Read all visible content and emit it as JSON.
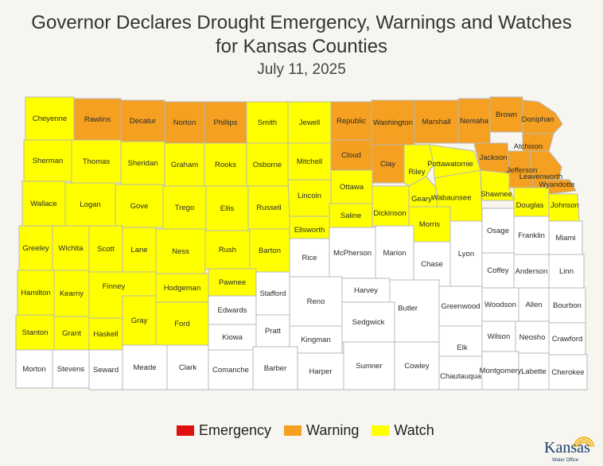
{
  "title_line1": "Governor Declares Drought Emergency, Warnings and Watches",
  "title_line2": "for Kansas Counties",
  "date": "July 11, 2025",
  "colors": {
    "Emergency": "#e01010",
    "Warning": "#f5a020",
    "Watch": "#ffff00",
    "None": "#ffffff",
    "border": "#b8b8b8"
  },
  "legend": [
    {
      "label": "Emergency",
      "status": "Emergency"
    },
    {
      "label": "Warning",
      "status": "Warning"
    },
    {
      "label": "Watch",
      "status": "Watch"
    }
  ],
  "logo": {
    "name": "Kansas",
    "sub": "Water Office"
  },
  "counties": [
    {
      "name": "Cheyenne",
      "status": "Watch"
    },
    {
      "name": "Rawlins",
      "status": "Warning"
    },
    {
      "name": "Decatur",
      "status": "Warning"
    },
    {
      "name": "Norton",
      "status": "Warning"
    },
    {
      "name": "Phillips",
      "status": "Warning"
    },
    {
      "name": "Smith",
      "status": "Watch"
    },
    {
      "name": "Jewell",
      "status": "Watch"
    },
    {
      "name": "Republic",
      "status": "Warning"
    },
    {
      "name": "Washington",
      "status": "Warning"
    },
    {
      "name": "Marshall",
      "status": "Warning"
    },
    {
      "name": "Nemaha",
      "status": "Warning"
    },
    {
      "name": "Brown",
      "status": "Warning"
    },
    {
      "name": "Doniphan",
      "status": "Warning"
    },
    {
      "name": "Sherman",
      "status": "Watch"
    },
    {
      "name": "Thomas",
      "status": "Watch"
    },
    {
      "name": "Sheridan",
      "status": "Watch"
    },
    {
      "name": "Graham",
      "status": "Watch"
    },
    {
      "name": "Rooks",
      "status": "Watch"
    },
    {
      "name": "Osborne",
      "status": "Watch"
    },
    {
      "name": "Mitchell",
      "status": "Watch"
    },
    {
      "name": "Cloud",
      "status": "Warning"
    },
    {
      "name": "Clay",
      "status": "Warning"
    },
    {
      "name": "Riley",
      "status": "Watch"
    },
    {
      "name": "Pottawatomie",
      "status": "Watch"
    },
    {
      "name": "Jackson",
      "status": "Warning"
    },
    {
      "name": "Atchison",
      "status": "Warning"
    },
    {
      "name": "Jefferson",
      "status": "Warning"
    },
    {
      "name": "Leavenworth",
      "status": "Warning"
    },
    {
      "name": "Wyandotte",
      "status": "Warning"
    },
    {
      "name": "Wallace",
      "status": "Watch"
    },
    {
      "name": "Logan",
      "status": "Watch"
    },
    {
      "name": "Gove",
      "status": "Watch"
    },
    {
      "name": "Trego",
      "status": "Watch"
    },
    {
      "name": "Ellis",
      "status": "Watch"
    },
    {
      "name": "Russell",
      "status": "Watch"
    },
    {
      "name": "Lincoln",
      "status": "Watch"
    },
    {
      "name": "Ottawa",
      "status": "Watch"
    },
    {
      "name": "Geary",
      "status": "Watch"
    },
    {
      "name": "Wabaunsee",
      "status": "Watch"
    },
    {
      "name": "Shawnee",
      "status": "Watch"
    },
    {
      "name": "Douglas",
      "status": "Watch"
    },
    {
      "name": "Johnson",
      "status": "Watch"
    },
    {
      "name": "Ellsworth",
      "status": "Watch"
    },
    {
      "name": "Saline",
      "status": "Watch"
    },
    {
      "name": "Dickinson",
      "status": "Watch"
    },
    {
      "name": "Morris",
      "status": "Watch"
    },
    {
      "name": "Greeley",
      "status": "Watch"
    },
    {
      "name": "Wichita",
      "status": "Watch"
    },
    {
      "name": "Scott",
      "status": "Watch"
    },
    {
      "name": "Lane",
      "status": "Watch"
    },
    {
      "name": "Ness",
      "status": "Watch"
    },
    {
      "name": "Rush",
      "status": "Watch"
    },
    {
      "name": "Barton",
      "status": "Watch"
    },
    {
      "name": "Rice",
      "status": "None"
    },
    {
      "name": "McPherson",
      "status": "None"
    },
    {
      "name": "Marion",
      "status": "None"
    },
    {
      "name": "Chase",
      "status": "None"
    },
    {
      "name": "Lyon",
      "status": "None"
    },
    {
      "name": "Osage",
      "status": "None"
    },
    {
      "name": "Franklin",
      "status": "None"
    },
    {
      "name": "Miami",
      "status": "None"
    },
    {
      "name": "Coffey",
      "status": "None"
    },
    {
      "name": "Anderson",
      "status": "None"
    },
    {
      "name": "Linn",
      "status": "None"
    },
    {
      "name": "Hamilton",
      "status": "Watch"
    },
    {
      "name": "Kearny",
      "status": "Watch"
    },
    {
      "name": "Finney",
      "status": "Watch"
    },
    {
      "name": "Hodgeman",
      "status": "Watch"
    },
    {
      "name": "Pawnee",
      "status": "Watch"
    },
    {
      "name": "Edwards",
      "status": "None"
    },
    {
      "name": "Stafford",
      "status": "None"
    },
    {
      "name": "Reno",
      "status": "None"
    },
    {
      "name": "Harvey",
      "status": "None"
    },
    {
      "name": "Sedgwick",
      "status": "None"
    },
    {
      "name": "Butler",
      "status": "None"
    },
    {
      "name": "Greenwood",
      "status": "None"
    },
    {
      "name": "Woodson",
      "status": "None"
    },
    {
      "name": "Allen",
      "status": "None"
    },
    {
      "name": "Bourbon",
      "status": "None"
    },
    {
      "name": "Gray",
      "status": "Watch"
    },
    {
      "name": "Ford",
      "status": "Watch"
    },
    {
      "name": "Stanton",
      "status": "Watch"
    },
    {
      "name": "Grant",
      "status": "Watch"
    },
    {
      "name": "Haskell",
      "status": "Watch"
    },
    {
      "name": "Kiowa",
      "status": "None"
    },
    {
      "name": "Pratt",
      "status": "None"
    },
    {
      "name": "Kingman",
      "status": "None"
    },
    {
      "name": "Wilson",
      "status": "None"
    },
    {
      "name": "Neosho",
      "status": "None"
    },
    {
      "name": "Crawford",
      "status": "None"
    },
    {
      "name": "Elk",
      "status": "None"
    },
    {
      "name": "Morton",
      "status": "None"
    },
    {
      "name": "Stevens",
      "status": "None"
    },
    {
      "name": "Seward",
      "status": "None"
    },
    {
      "name": "Meade",
      "status": "None"
    },
    {
      "name": "Clark",
      "status": "None"
    },
    {
      "name": "Comanche",
      "status": "None"
    },
    {
      "name": "Barber",
      "status": "None"
    },
    {
      "name": "Harper",
      "status": "None"
    },
    {
      "name": "Sumner",
      "status": "None"
    },
    {
      "name": "Cowley",
      "status": "None"
    },
    {
      "name": "Chautauqua",
      "status": "None"
    },
    {
      "name": "Montgomery",
      "status": "None"
    },
    {
      "name": "Labette",
      "status": "None"
    },
    {
      "name": "Cherokee",
      "status": "None"
    }
  ]
}
